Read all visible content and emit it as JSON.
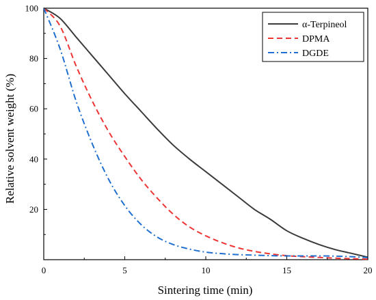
{
  "chart_data": {
    "type": "line",
    "title": "",
    "xlabel": "Sintering time (min)",
    "ylabel": "Relative solvent weight (%)",
    "xlim": [
      0,
      20
    ],
    "ylim": [
      0,
      100
    ],
    "x_ticks": [
      0,
      5,
      10,
      15,
      20
    ],
    "y_ticks": [
      20,
      40,
      60,
      80,
      100
    ],
    "grid": false,
    "legend_position": "top-right",
    "series": [
      {
        "name": "α-Terpineol",
        "color": "#3a3a3a",
        "dash": "solid",
        "x": [
          0,
          1,
          2,
          3,
          4,
          5,
          6,
          7,
          8,
          9,
          10,
          11,
          12,
          13,
          14,
          15,
          16,
          17,
          18,
          19,
          20
        ],
        "values": [
          100,
          96,
          88.5,
          81,
          73.5,
          66,
          59,
          52,
          45.5,
          40,
          35,
          30,
          25,
          20,
          16,
          11.5,
          8.5,
          6,
          4,
          2.5,
          1
        ]
      },
      {
        "name": "DPMA",
        "color": "#ee3333",
        "dash": "dashed",
        "x": [
          0,
          1,
          2,
          3,
          4,
          5,
          6,
          7,
          8,
          9,
          10,
          11,
          12,
          13,
          14,
          15,
          16,
          17,
          18,
          19,
          20
        ],
        "values": [
          100,
          93,
          77,
          63,
          51,
          41,
          32,
          24.5,
          18,
          13,
          9.5,
          6.8,
          4.7,
          3.3,
          2.3,
          1.6,
          1.2,
          0.9,
          0.6,
          0.4,
          0.2
        ]
      },
      {
        "name": "DGDE",
        "color": "#1f6fd0",
        "dash": "dashdot",
        "x": [
          0,
          1,
          2,
          3,
          4,
          5,
          6,
          7,
          8,
          9,
          10,
          11,
          12,
          13,
          14,
          15,
          16,
          17,
          18,
          19,
          20
        ],
        "values": [
          100,
          84,
          63,
          46,
          32,
          21.5,
          14,
          9,
          6,
          4.2,
          3,
          2.4,
          2,
          1.8,
          1.6,
          1.5,
          1.5,
          1.5,
          1.4,
          1.2,
          0.8
        ]
      }
    ]
  }
}
